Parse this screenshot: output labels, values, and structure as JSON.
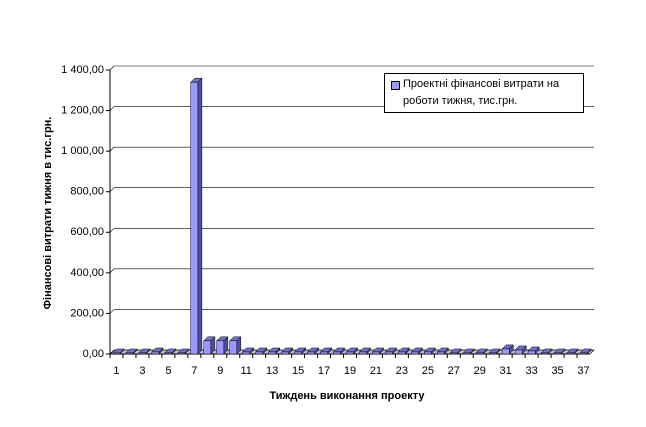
{
  "chart_data": {
    "type": "bar",
    "x_label": "Тиждень виконання проекту",
    "y_label": "Фінансові витрати тижня в тис.грн.",
    "categories": [
      "1",
      null,
      "3",
      null,
      "5",
      null,
      "7",
      null,
      "9",
      null,
      "11",
      null,
      "13",
      null,
      "15",
      null,
      "17",
      null,
      "19",
      null,
      "21",
      null,
      "23",
      null,
      "25",
      null,
      "27",
      null,
      "29",
      null,
      "31",
      null,
      "33",
      null,
      "35",
      null,
      "37"
    ],
    "series": [
      {
        "name": "Проектні фінансові витрати на роботи тижня, тис.грн.",
        "color": "#9999ff",
        "values": [
          5,
          5,
          5,
          10,
          5,
          5,
          1340,
          65,
          65,
          65,
          10,
          10,
          10,
          10,
          10,
          10,
          10,
          10,
          10,
          10,
          10,
          10,
          10,
          10,
          10,
          10,
          5,
          5,
          5,
          5,
          25,
          20,
          15,
          5,
          5,
          5,
          5
        ]
      }
    ],
    "ylim": [
      0,
      1400
    ],
    "yticks": [
      {
        "value": 0,
        "label": "0,00"
      },
      {
        "value": 200,
        "label": "200,00"
      },
      {
        "value": 400,
        "label": "400,00"
      },
      {
        "value": 600,
        "label": "600,00"
      },
      {
        "value": 800,
        "label": "800,00"
      },
      {
        "value": 1000,
        "label": "1 000,00"
      },
      {
        "value": 1200,
        "label": "1 200,00"
      },
      {
        "value": 1400,
        "label": "1 400,00"
      }
    ],
    "grid": true
  }
}
